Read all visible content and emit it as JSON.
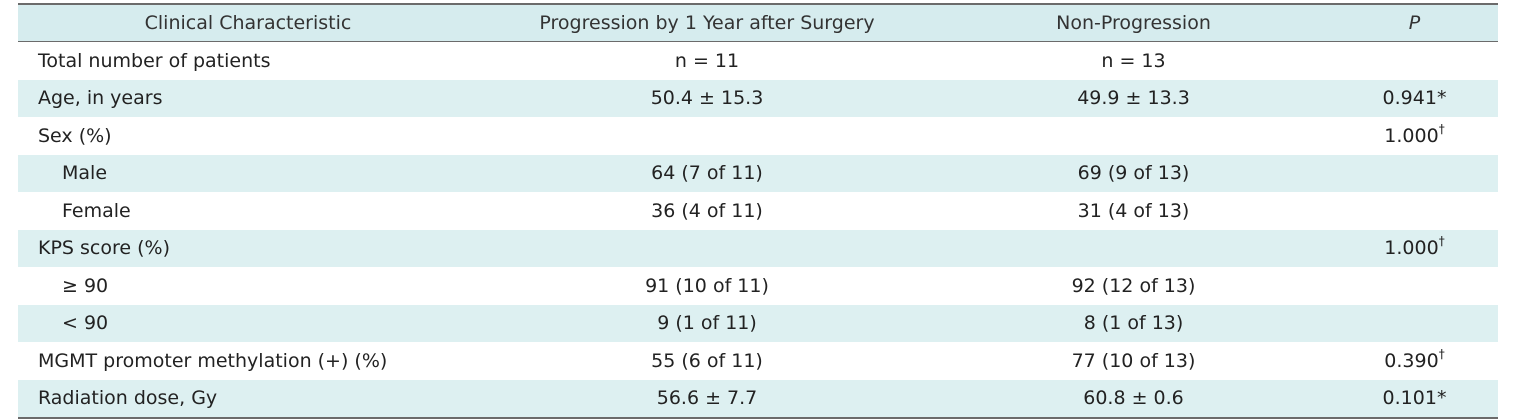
{
  "headers": [
    "Clinical Characteristic",
    "Progression by 1 Year after Surgery",
    "Non-Progression",
    "P"
  ],
  "rows": [
    {
      "label": "Total number of patients",
      "prog": "n = 11",
      "nonprog": "n = 13",
      "p": "",
      "mark": "",
      "sub": false,
      "shade": false
    },
    {
      "label": "Age, in years",
      "prog": "50.4 ± 15.3",
      "nonprog": "49.9 ± 13.3",
      "p": "0.941",
      "mark": "*",
      "sub": false,
      "shade": true
    },
    {
      "label": "Sex (%)",
      "prog": "",
      "nonprog": "",
      "p": "1.000",
      "mark": "†",
      "sub": false,
      "shade": false
    },
    {
      "label": "Male",
      "prog": "64 (7 of 11)",
      "nonprog": "69 (9 of 13)",
      "p": "",
      "mark": "",
      "sub": true,
      "shade": true
    },
    {
      "label": "Female",
      "prog": "36 (4 of 11)",
      "nonprog": "31 (4 of 13)",
      "p": "",
      "mark": "",
      "sub": true,
      "shade": false
    },
    {
      "label": "KPS score (%)",
      "prog": "",
      "nonprog": "",
      "p": "1.000",
      "mark": "†",
      "sub": false,
      "shade": true
    },
    {
      "label": "≥ 90",
      "prog": "91 (10 of 11)",
      "nonprog": "92 (12 of 13)",
      "p": "",
      "mark": "",
      "sub": true,
      "shade": false
    },
    {
      "label": "< 90",
      "prog": "9 (1 of 11)",
      "nonprog": "8 (1 of 13)",
      "p": "",
      "mark": "",
      "sub": true,
      "shade": true
    },
    {
      "label": "MGMT promoter methylation (+) (%)",
      "prog": "55 (6 of 11)",
      "nonprog": "77 (10 of 13)",
      "p": "0.390",
      "mark": "†",
      "sub": false,
      "shade": false
    },
    {
      "label": "Radiation dose, Gy",
      "prog": "56.6 ± 7.7",
      "nonprog": "60.8 ± 0.6",
      "p": "0.101",
      "mark": "*",
      "sub": false,
      "shade": true
    }
  ]
}
